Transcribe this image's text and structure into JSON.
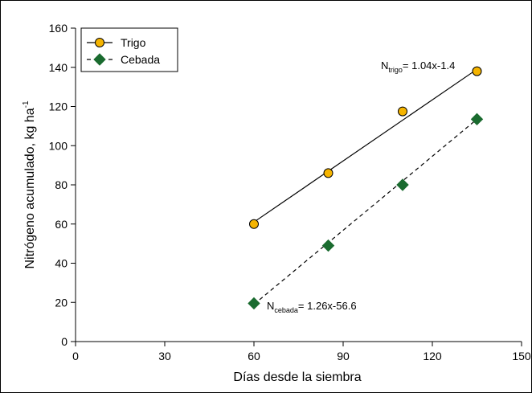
{
  "chart_data": {
    "type": "scatter",
    "xlabel": "Días desde la siembra",
    "ylabel": "Nitrógeno acumulado, kg ha",
    "ylabel_sup": "-1",
    "xlim": [
      0,
      150
    ],
    "ylim": [
      0,
      160
    ],
    "xticks": [
      0,
      30,
      60,
      90,
      120,
      150
    ],
    "yticks": [
      0,
      20,
      40,
      60,
      80,
      100,
      120,
      140,
      160
    ],
    "xtick_labels": [
      "0",
      "30",
      "60",
      "90",
      "120",
      "150"
    ],
    "ytick_labels": [
      "0",
      "20",
      "40",
      "60",
      "80",
      "100",
      "120",
      "140",
      "160"
    ],
    "grid": false,
    "legend_position": "top-left",
    "series": [
      {
        "name": "Trigo",
        "marker": "circle",
        "line": "solid",
        "color": "#f5b400",
        "x": [
          60,
          85,
          110,
          135
        ],
        "y": [
          60,
          86,
          117.5,
          138
        ],
        "fit": {
          "slope": 1.04,
          "intercept": -1.4,
          "x_range": [
            60,
            135
          ]
        }
      },
      {
        "name": "Cebada",
        "marker": "diamond",
        "line": "dashed",
        "color": "#1a6b2f",
        "x": [
          60,
          85,
          110,
          135
        ],
        "y": [
          19.5,
          49,
          80,
          113.5
        ],
        "fit": {
          "slope": 1.26,
          "intercept": -56.6,
          "x_range": [
            60,
            135
          ]
        }
      }
    ],
    "annotations": [
      {
        "prefix": "N",
        "sub": "trigo",
        "text": "= 1.04x-1.4"
      },
      {
        "prefix": "N",
        "sub": "cebada",
        "text": "= 1.26x-56.6"
      }
    ]
  }
}
